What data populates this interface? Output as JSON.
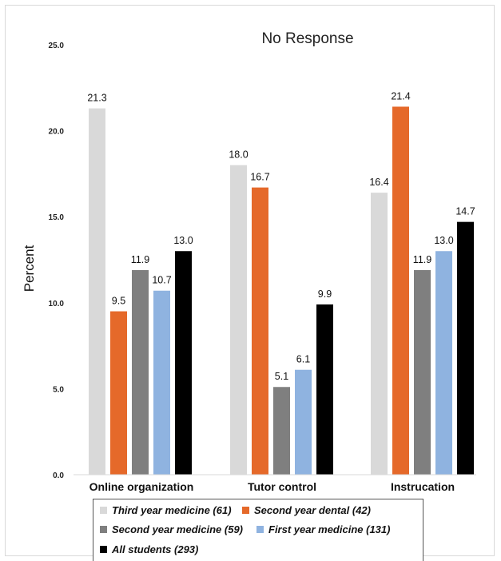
{
  "chart_data": {
    "type": "bar",
    "title": "No Response",
    "ylabel": "Percent",
    "xlabel": "",
    "ylim": [
      0,
      25
    ],
    "yticks": [
      "0.0",
      "5.0",
      "10.0",
      "15.0",
      "20.0",
      "25.0"
    ],
    "categories": [
      "Online organization",
      "Tutor control",
      "Instrucation"
    ],
    "series": [
      {
        "name": "Third year medicine (61)",
        "color": "#d9d9d9",
        "values": [
          21.3,
          18.0,
          16.4
        ],
        "labels": [
          "21.3",
          "18.0",
          "16.4"
        ]
      },
      {
        "name": "Second year dental (42)",
        "color": "#e5692a",
        "values": [
          9.5,
          16.7,
          21.4
        ],
        "labels": [
          "9.5",
          "16.7",
          "21.4"
        ]
      },
      {
        "name": "Second year medicine (59)",
        "color": "#7f7f7f",
        "values": [
          11.9,
          5.1,
          11.9
        ],
        "labels": [
          "11.9",
          "5.1",
          "11.9"
        ]
      },
      {
        "name": "First year medicine (131)",
        "color": "#8fb3e0",
        "values": [
          10.7,
          6.1,
          13.0
        ],
        "labels": [
          "10.7",
          "6.1",
          "13.0"
        ]
      },
      {
        "name": "All students (293)",
        "color": "#000000",
        "values": [
          13.0,
          9.9,
          14.7
        ],
        "labels": [
          "13.0",
          "9.9",
          "14.7"
        ]
      }
    ],
    "legend_position": "bottom",
    "grid": false
  }
}
